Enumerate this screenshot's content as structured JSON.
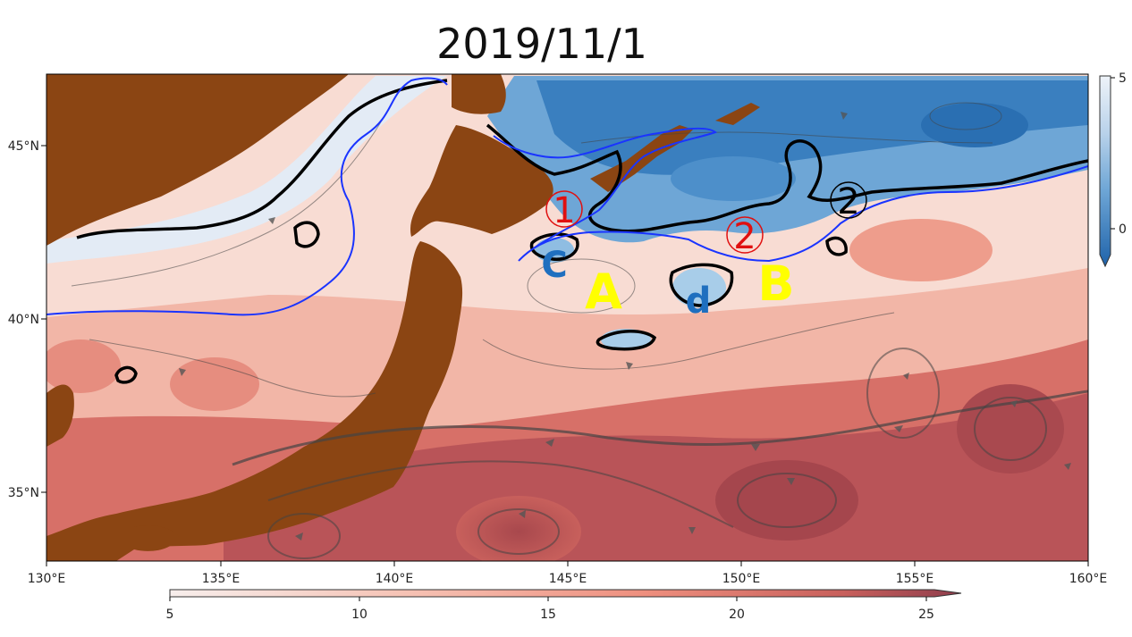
{
  "title": "2019/11/1",
  "map": {
    "lon_ticks": [
      "130°E",
      "135°E",
      "140°E",
      "145°E",
      "150°E",
      "155°E",
      "160°E"
    ],
    "lat_ticks": [
      "45°N",
      "40°N",
      "35°N"
    ],
    "land_color": "#8B4513",
    "cold_color": "#3a7fbf",
    "warm_color": "#e07a6a",
    "contour_color": "#1a34ff"
  },
  "annotations": {
    "circled_1": "1",
    "circled_2_red": "2",
    "circled_2_black": "2",
    "label_A": "A",
    "label_B": "B",
    "label_C": "C",
    "label_d": "d"
  },
  "colorbar_warm": {
    "ticks": [
      "5",
      "10",
      "15",
      "20",
      "25"
    ]
  },
  "colorbar_cold": {
    "ticks": [
      "5",
      "0"
    ]
  }
}
